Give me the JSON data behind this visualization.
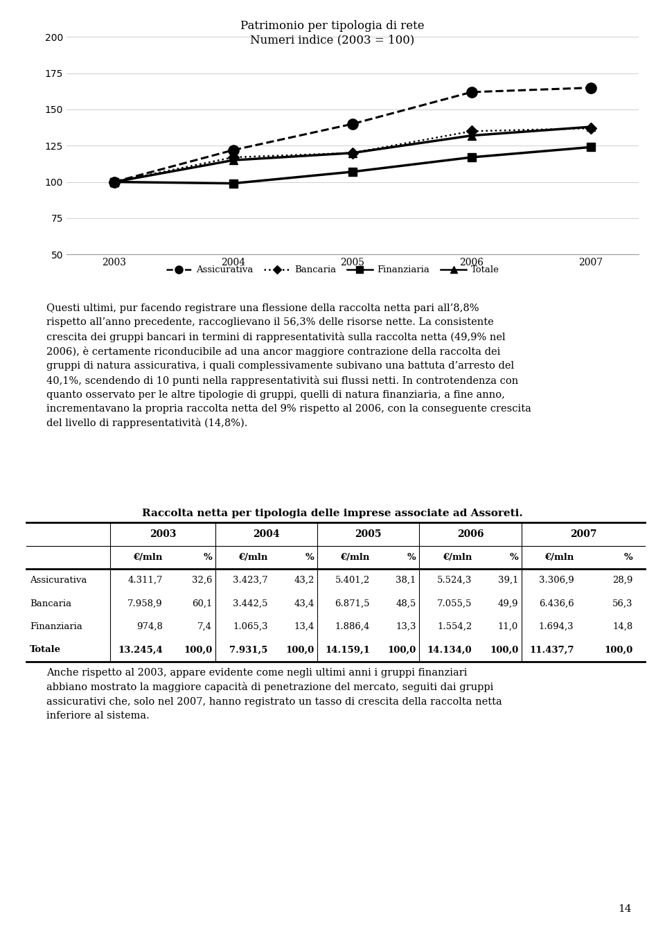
{
  "chart_title_line1": "Patrimonio per tipologia di rete",
  "chart_title_line2": "Numeri indice (2003 = 100)",
  "years": [
    2003,
    2004,
    2005,
    2006,
    2007
  ],
  "series_order": [
    "Assicurativa",
    "Bancaria",
    "Finanziaria",
    "Totale"
  ],
  "series": {
    "Assicurativa": [
      100,
      122,
      140,
      162,
      165
    ],
    "Bancaria": [
      100,
      117,
      120,
      135,
      137
    ],
    "Finanziaria": [
      100,
      99,
      107,
      117,
      124
    ],
    "Totale": [
      100,
      115,
      120,
      132,
      138
    ]
  },
  "ylim": [
    50,
    200
  ],
  "yticks": [
    50,
    75,
    100,
    125,
    150,
    175,
    200
  ],
  "paragraph1": "Questi ultimi, pur facendo registrare una flessione della raccolta netta pari all’8,8%\nrispetto all’anno precedente, raccoglievano il 56,3% delle risorse nette. La consistente\ncrescita dei gruppi bancari in termini di rappresentatività sulla raccolta netta (49,9% nel\n2006), è certamente riconducibile ad una ancor maggiore contrazione della raccolta dei\ngruppi di natura assicurativa, i quali complessivamente subivano una battuta d’arresto del\n40,1%, scendendo di 10 punti nella rappresentatività sui flussi netti. In controtendenza con\nquanto osservato per le altre tipologie di gruppi, quelli di natura finanziaria, a fine anno,\nincrementavano la propria raccolta netta del 9% rispetto al 2006, con la conseguente crescita\ndel livello di rappresentatività (14,8%).",
  "table_title": "Raccolta netta per tipologia delle imprese associate ad Assoreti.",
  "table_rows": [
    {
      "label": "Assicurativa",
      "bold": false,
      "data": [
        "4.311,7",
        "32,6",
        "3.423,7",
        "43,2",
        "5.401,2",
        "38,1",
        "5.524,3",
        "39,1",
        "3.306,9",
        "28,9"
      ]
    },
    {
      "label": "Bancaria",
      "bold": false,
      "data": [
        "7.958,9",
        "60,1",
        "3.442,5",
        "43,4",
        "6.871,5",
        "48,5",
        "7.055,5",
        "49,9",
        "6.436,6",
        "56,3"
      ]
    },
    {
      "label": "Finanziaria",
      "bold": false,
      "data": [
        "974,8",
        "7,4",
        "1.065,3",
        "13,4",
        "1.886,4",
        "13,3",
        "1.554,2",
        "11,0",
        "1.694,3",
        "14,8"
      ]
    },
    {
      "label": "Totale",
      "bold": true,
      "data": [
        "13.245,4",
        "100,0",
        "7.931,5",
        "100,0",
        "14.159,1",
        "100,0",
        "14.134,0",
        "100,0",
        "11.437,7",
        "100,0"
      ]
    }
  ],
  "paragraph2": "Anche rispetto al 2003, appare evidente come negli ultimi anni i gruppi finanziari\nabbiano mostrato la maggiore capacità di penetrazione del mercato, seguiti dai gruppi\nassicurativi che, solo nel 2007, hanno registrato un tasso di crescita della raccolta netta\ninferiore al sistema.",
  "page_number": "14",
  "background_color": "#ffffff"
}
